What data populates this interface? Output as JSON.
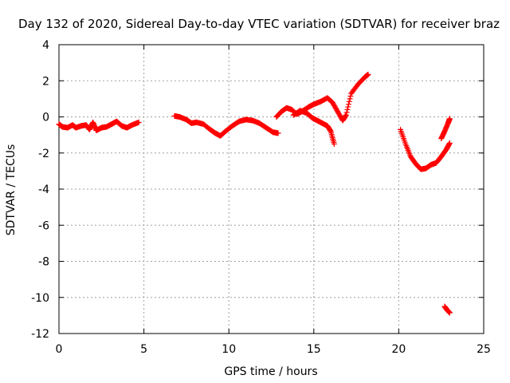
{
  "chart_data": {
    "type": "scatter",
    "title": "Day 132 of 2020, Sidereal Day-to-day VTEC variation (SDTVAR) for receiver braz",
    "xlabel": "GPS time / hours",
    "ylabel": "SDTVAR / TECUs",
    "xlim": [
      0,
      25
    ],
    "ylim": [
      -12,
      4
    ],
    "xticks": [
      0,
      5,
      10,
      15,
      20,
      25
    ],
    "yticks": [
      4,
      2,
      0,
      -2,
      -4,
      -6,
      -8,
      -10,
      -12
    ],
    "grid": true,
    "marker": "+",
    "series": [
      {
        "name": "SDTVAR",
        "color": "#ff0000",
        "segments": [
          [
            [
              0,
              -0.4
            ],
            [
              0.2,
              -0.55
            ],
            [
              0.5,
              -0.6
            ],
            [
              0.8,
              -0.45
            ],
            [
              1.0,
              -0.6
            ],
            [
              1.3,
              -0.5
            ],
            [
              1.6,
              -0.45
            ],
            [
              1.8,
              -0.7
            ],
            [
              2.0,
              -0.3
            ],
            [
              2.2,
              -0.75
            ],
            [
              2.5,
              -0.6
            ],
            [
              2.8,
              -0.55
            ],
            [
              3.1,
              -0.4
            ],
            [
              3.4,
              -0.25
            ],
            [
              3.7,
              -0.5
            ],
            [
              4.0,
              -0.6
            ],
            [
              4.3,
              -0.45
            ],
            [
              4.7,
              -0.3
            ]
          ],
          [
            [
              6.8,
              0.05
            ],
            [
              7.1,
              0.0
            ],
            [
              7.5,
              -0.15
            ],
            [
              7.8,
              -0.35
            ],
            [
              8.1,
              -0.3
            ],
            [
              8.5,
              -0.4
            ],
            [
              8.9,
              -0.7
            ],
            [
              9.2,
              -0.9
            ],
            [
              9.5,
              -1.05
            ],
            [
              9.8,
              -0.8
            ],
            [
              10.2,
              -0.5
            ],
            [
              10.6,
              -0.25
            ],
            [
              11.0,
              -0.15
            ],
            [
              11.4,
              -0.2
            ],
            [
              11.8,
              -0.35
            ],
            [
              12.2,
              -0.6
            ],
            [
              12.6,
              -0.85
            ],
            [
              12.9,
              -0.9
            ]
          ],
          [
            [
              12.8,
              0.0
            ],
            [
              13.1,
              0.3
            ],
            [
              13.4,
              0.5
            ],
            [
              13.7,
              0.4
            ],
            [
              14.0,
              0.15
            ],
            [
              14.3,
              0.3
            ],
            [
              14.7,
              0.55
            ],
            [
              15.0,
              0.7
            ],
            [
              15.4,
              0.85
            ],
            [
              15.8,
              1.05
            ],
            [
              16.1,
              0.8
            ],
            [
              16.4,
              0.3
            ],
            [
              16.7,
              -0.2
            ],
            [
              16.9,
              0.1
            ],
            [
              17.2,
              1.3
            ],
            [
              17.6,
              1.8
            ],
            [
              18.0,
              2.2
            ],
            [
              18.2,
              2.35
            ]
          ],
          [
            [
              13.8,
              0.1
            ],
            [
              14.2,
              0.35
            ],
            [
              14.6,
              0.2
            ],
            [
              14.9,
              -0.05
            ],
            [
              15.2,
              -0.2
            ],
            [
              15.5,
              -0.35
            ],
            [
              15.8,
              -0.5
            ],
            [
              16.0,
              -0.8
            ],
            [
              16.2,
              -1.5
            ]
          ],
          [
            [
              20.1,
              -0.7
            ],
            [
              20.4,
              -1.5
            ],
            [
              20.7,
              -2.2
            ],
            [
              21.0,
              -2.6
            ],
            [
              21.3,
              -2.9
            ],
            [
              21.6,
              -2.85
            ],
            [
              21.9,
              -2.65
            ],
            [
              22.2,
              -2.55
            ],
            [
              22.5,
              -2.2
            ],
            [
              22.8,
              -1.8
            ],
            [
              23.0,
              -1.45
            ]
          ],
          [
            [
              22.5,
              -1.2
            ],
            [
              22.7,
              -0.8
            ],
            [
              22.9,
              -0.35
            ],
            [
              23.0,
              -0.1
            ]
          ],
          [
            [
              22.7,
              -10.5
            ],
            [
              22.85,
              -10.7
            ],
            [
              23.0,
              -10.85
            ]
          ]
        ]
      }
    ]
  }
}
